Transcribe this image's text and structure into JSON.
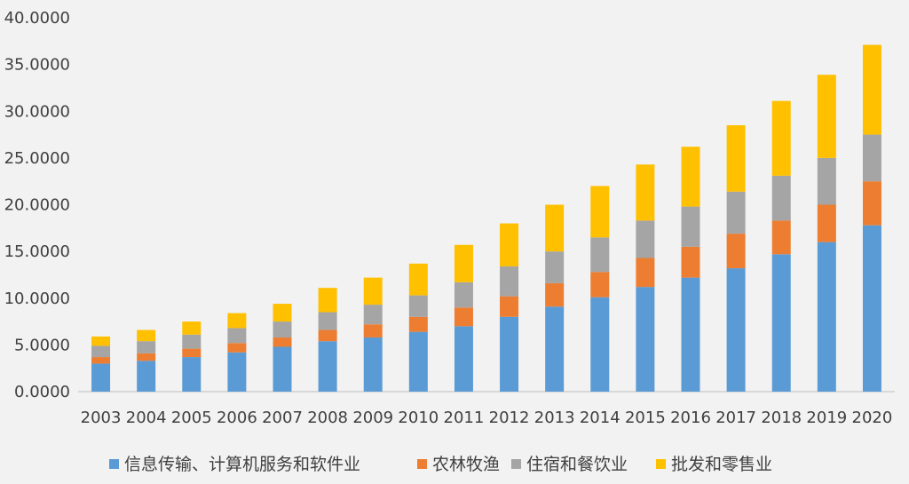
{
  "chart_data": {
    "type": "bar",
    "stacked": true,
    "title": "",
    "xlabel": "",
    "ylabel": "",
    "categories": [
      "2003",
      "2004",
      "2005",
      "2006",
      "2007",
      "2008",
      "2009",
      "2010",
      "2011",
      "2012",
      "2013",
      "2014",
      "2015",
      "2016",
      "2017",
      "2018",
      "2019",
      "2020"
    ],
    "ylim": [
      0,
      40
    ],
    "yticks": [
      "0.0000",
      "5.0000",
      "10.0000",
      "15.0000",
      "20.0000",
      "25.0000",
      "30.0000",
      "35.0000",
      "40.0000"
    ],
    "grid": false,
    "legend_position": "bottom",
    "series": [
      {
        "name": "信息传输、计算机服务和软件业",
        "color": "#5b9bd5",
        "values": [
          3.0,
          3.3,
          3.7,
          4.2,
          4.8,
          5.4,
          5.8,
          6.4,
          7.0,
          8.0,
          9.1,
          10.1,
          11.2,
          12.2,
          13.2,
          14.7,
          16.0,
          17.8
        ]
      },
      {
        "name": "农林牧渔",
        "color": "#ed7d31",
        "values": [
          0.7,
          0.8,
          0.9,
          1.0,
          1.0,
          1.2,
          1.4,
          1.6,
          2.0,
          2.2,
          2.5,
          2.7,
          3.1,
          3.3,
          3.7,
          3.6,
          4.0,
          4.7
        ]
      },
      {
        "name": "住宿和餐饮业",
        "color": "#a5a5a5",
        "values": [
          1.2,
          1.3,
          1.5,
          1.6,
          1.7,
          1.9,
          2.1,
          2.3,
          2.7,
          3.2,
          3.4,
          3.7,
          4.0,
          4.3,
          4.5,
          4.8,
          5.0,
          5.0
        ]
      },
      {
        "name": "批发和零售业",
        "color": "#ffc000",
        "values": [
          1.0,
          1.2,
          1.4,
          1.6,
          1.9,
          2.6,
          2.9,
          3.4,
          4.0,
          4.6,
          5.0,
          5.5,
          6.0,
          6.4,
          7.1,
          8.0,
          8.9,
          9.6
        ]
      }
    ]
  }
}
